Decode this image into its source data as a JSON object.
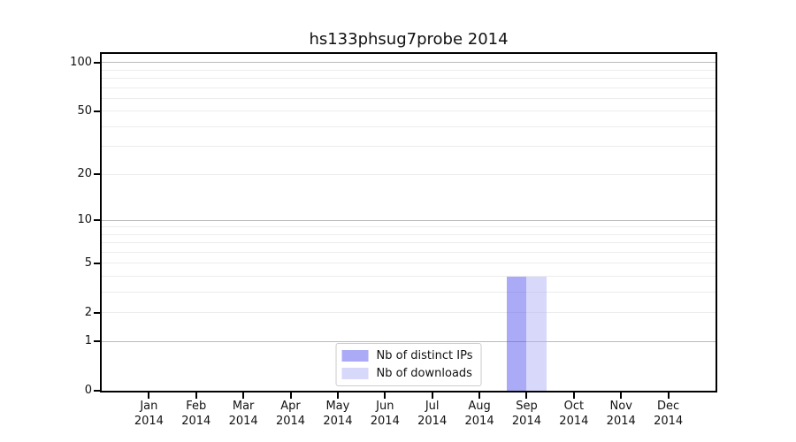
{
  "chart_data": {
    "type": "bar",
    "title": "hs133phsug7probe 2014",
    "x_axis": {
      "categories": [
        "Jan",
        "Feb",
        "Mar",
        "Apr",
        "May",
        "Jun",
        "Jul",
        "Aug",
        "Sep",
        "Oct",
        "Nov",
        "Dec"
      ],
      "year_label": "2014"
    },
    "y_axis": {
      "scale": "log1p",
      "top_value": 113,
      "tick_values": [
        0,
        1,
        2,
        5,
        10,
        20,
        50,
        100
      ],
      "major_gridlines": [
        1,
        10,
        100
      ],
      "minor_gridlines": [
        2,
        3,
        4,
        5,
        6,
        7,
        8,
        9,
        20,
        30,
        40,
        50,
        60,
        70,
        80,
        90
      ]
    },
    "series": [
      {
        "name": "Nb of distinct IPs",
        "color": "rgba(85,85,238,0.5)",
        "values": [
          0,
          0,
          0,
          0,
          0,
          0,
          0,
          0,
          4,
          0,
          0,
          0
        ]
      },
      {
        "name": "Nb of downloads",
        "color": "rgba(177,177,245,0.5)",
        "values": [
          0,
          0,
          0,
          0,
          0,
          0,
          0,
          0,
          4,
          0,
          0,
          0
        ]
      }
    ],
    "legend": {
      "position": "lower-center"
    },
    "grid": true
  },
  "colors": {
    "axis": "#000000",
    "background": "#ffffff",
    "major_grid": "#bbbbbb",
    "minor_grid": "#ececec"
  }
}
